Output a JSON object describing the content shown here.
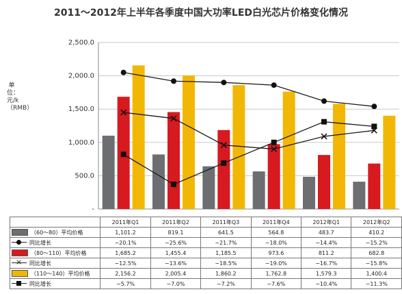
{
  "chart_data": {
    "type": "bar",
    "title": "2011～2012年上半年各季度中国大功率LED白光芯片价格变化情况",
    "ylabel": "单位：元/k（RMB）",
    "ylim": [
      0,
      2500
    ],
    "yticks": [
      "2,500.0",
      "2,000.0",
      "1,500.0",
      "1,000.0",
      "500.0",
      "-"
    ],
    "categories": [
      "2011年Q1",
      "2011年Q2",
      "2011年Q3",
      "2011年Q4",
      "2012年Q1",
      "2012年Q2"
    ],
    "bar_series": [
      {
        "name": "（60～80）平均价格",
        "color": "#6d6e71",
        "values": [
          1101.2,
          819.1,
          641.5,
          564.8,
          483.7,
          410.2
        ],
        "labels": [
          "1,101.2",
          "819.1",
          "641.5",
          "564.8",
          "483.7",
          "410.2"
        ]
      },
      {
        "name": "（80～110）平均价格",
        "color": "#d71920",
        "values": [
          1685.2,
          1455.4,
          1185.5,
          973.6,
          811.2,
          682.8
        ],
        "labels": [
          "1,685.2",
          "1,455.4",
          "1,185.5",
          "973.6",
          "811.2",
          "682.8"
        ]
      },
      {
        "name": "（110～140）平均价格",
        "color": "#f2b705",
        "values": [
          2156.2,
          2005.4,
          1860.2,
          1762.8,
          1579.3,
          1400.4
        ],
        "labels": [
          "2,156.2",
          "2,005.4",
          "1,860.2",
          "1,762.8",
          "1,579.3",
          "1,400.4"
        ]
      }
    ],
    "line_series": [
      {
        "name": "同比增长",
        "marker": "circle",
        "labels": [
          "−20.1%",
          "−25.6%",
          "−21.7%",
          "−18.0%",
          "−14.4%",
          "−15.2%"
        ],
        "plot_y": [
          2050,
          1920,
          1900,
          1860,
          1620,
          1540
        ]
      },
      {
        "name": "同比增长",
        "marker": "x",
        "labels": [
          "−12.5%",
          "−13.6%",
          "−18.5%",
          "−19.0%",
          "−16.7%",
          "−15.8%"
        ],
        "plot_y": [
          1450,
          1360,
          960,
          900,
          1090,
          1180
        ]
      },
      {
        "name": "同比增长",
        "marker": "square",
        "labels": [
          "−5.7%",
          "−7.0%",
          "−7.2%",
          "−7.6%",
          "−10.4%",
          "−11.3%"
        ],
        "plot_y": [
          820,
          370,
          690,
          1000,
          1310,
          1240
        ]
      }
    ]
  }
}
